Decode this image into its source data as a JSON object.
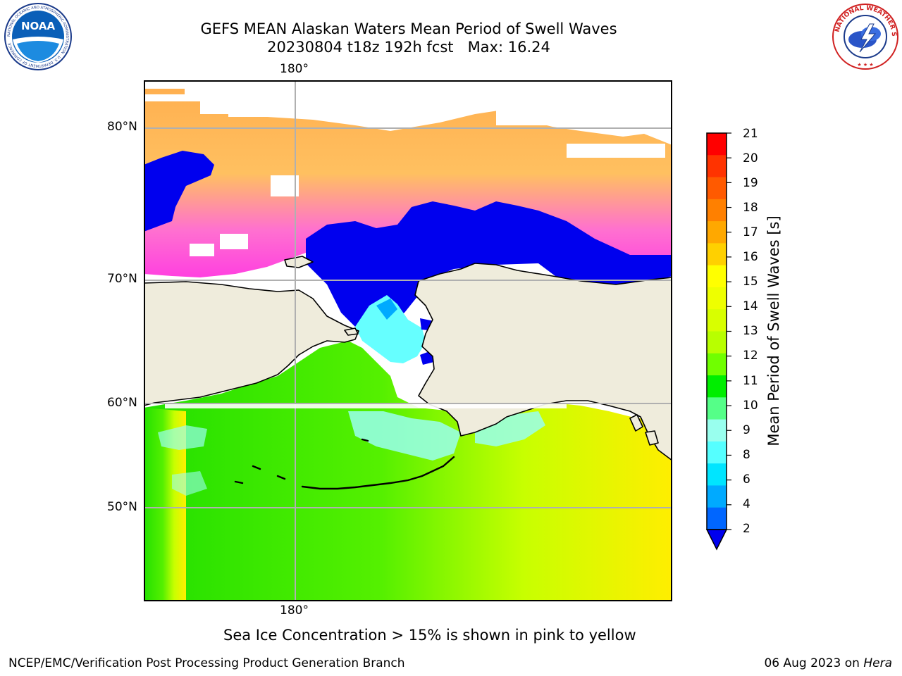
{
  "header": {
    "title_line1": "GEFS MEAN Alaskan Waters Mean Period of Swell Waves",
    "title_line2": "20230804 t18z 192h fcst   Max: 16.24"
  },
  "logos": {
    "noaa_text": "NOAA",
    "noaa_ring": "NATIONAL OCEANIC AND ATMOSPHERIC ADMINISTRATION · U.S. DEPARTMENT OF COMMERCE",
    "nws_ring": "NATIONAL WEATHER SERVICE"
  },
  "map": {
    "lon_label_top": "180°",
    "lon_label_bottom": "180°",
    "lat_labels": [
      "80°N",
      "70°N",
      "60°N",
      "50°N"
    ],
    "land_color": "#efecdc",
    "grid_color": "#b0b0b0"
  },
  "colorbar": {
    "title": "Mean Period of Swell Waves [s]",
    "ticks": [
      "21",
      "20",
      "19",
      "18",
      "17",
      "16",
      "15",
      "14",
      "13",
      "12",
      "11",
      "10",
      "9",
      "8",
      "6",
      "4",
      "2"
    ],
    "colors_top_to_bottom": [
      "#ff0000",
      "#ff3300",
      "#ff5a00",
      "#ff8000",
      "#ffa800",
      "#ffd000",
      "#ffff00",
      "#eeff00",
      "#d8ff00",
      "#b8ff00",
      "#70ff00",
      "#00ee00",
      "#55ff88",
      "#99ffee",
      "#55ffff",
      "#00e5ff",
      "#00aaff",
      "#0066ff"
    ],
    "extend_color": "#0000ee"
  },
  "footer": {
    "ice_note": "Sea Ice Concentration > 15% is shown in pink to yellow",
    "credit": "NCEP/EMC/Verification Post Processing Product Generation Branch",
    "date": "06 Aug 2023 on",
    "machine": "Hera"
  }
}
